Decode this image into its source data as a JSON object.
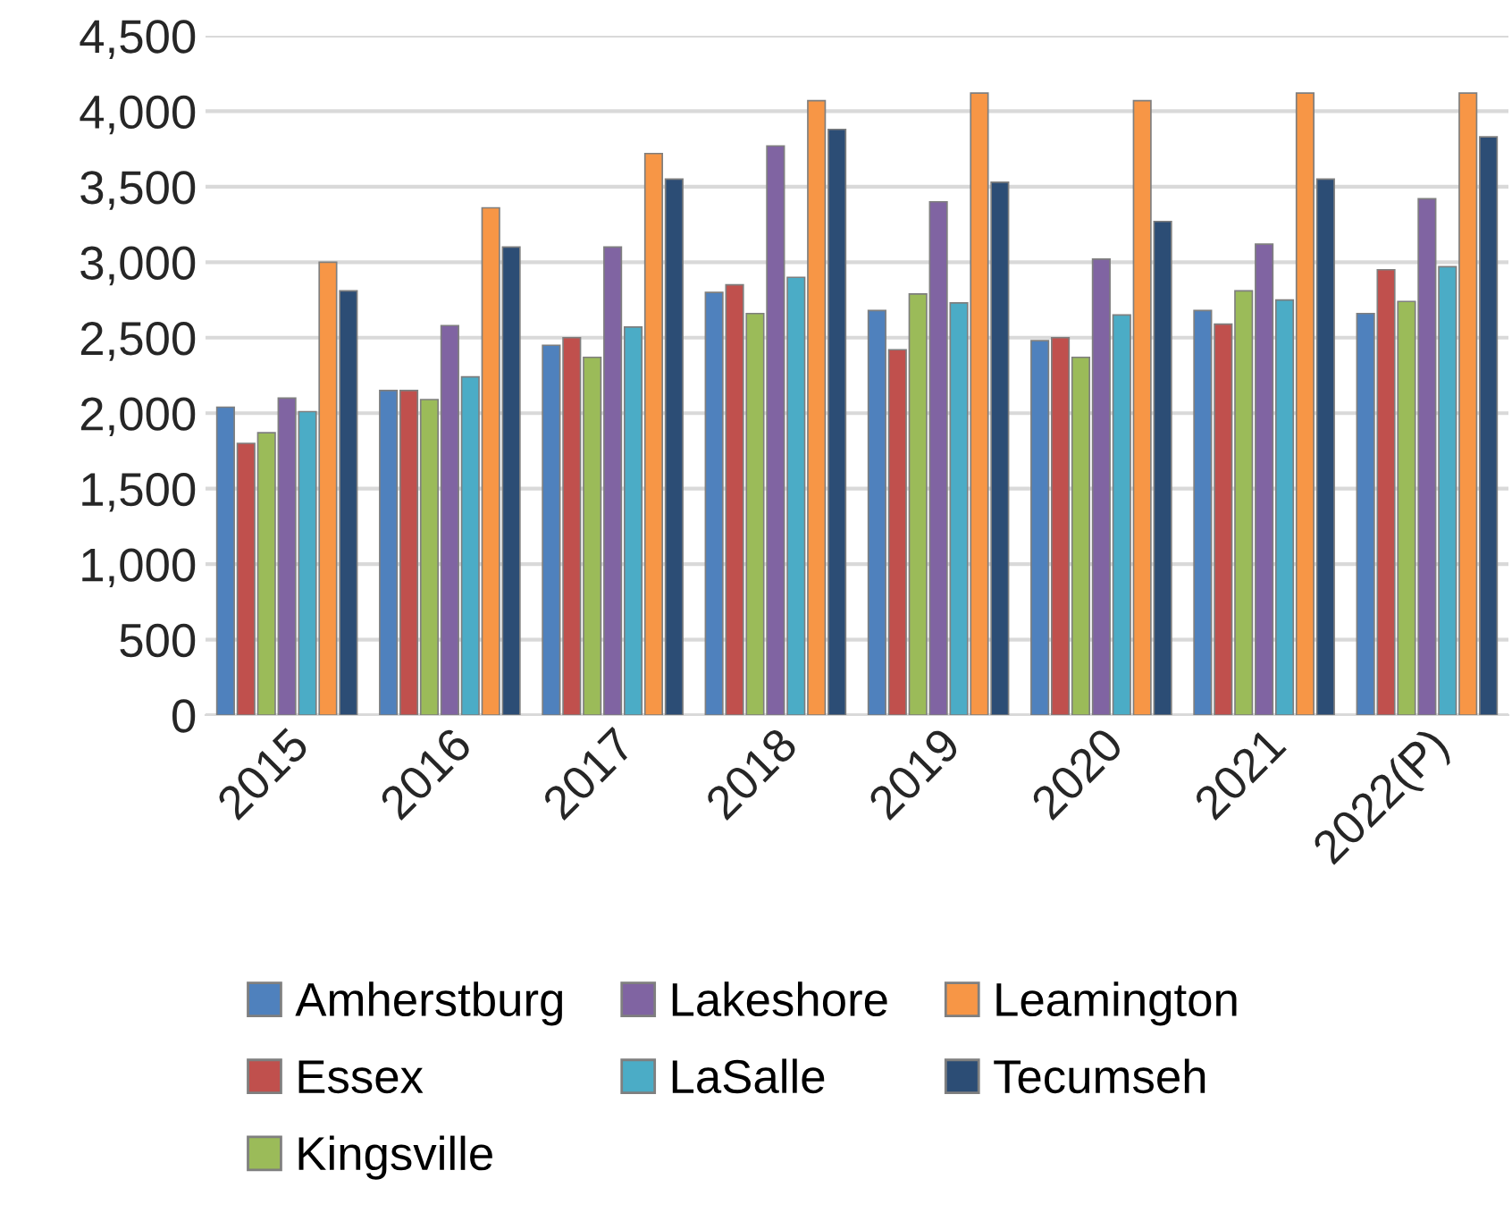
{
  "chart_data": {
    "type": "bar",
    "categories": [
      "2015",
      "2016",
      "2017",
      "2018",
      "2019",
      "2020",
      "2021",
      "2022(P)"
    ],
    "series": [
      {
        "name": "Amherstburg",
        "color": "#4f81bd",
        "values": [
          2040,
          2150,
          2450,
          2800,
          2680,
          2480,
          2680,
          2660
        ]
      },
      {
        "name": "Essex",
        "color": "#c0504d",
        "values": [
          1800,
          2150,
          2500,
          2850,
          2420,
          2500,
          2590,
          2950
        ]
      },
      {
        "name": "Kingsville",
        "color": "#9bbb59",
        "values": [
          1870,
          2090,
          2370,
          2660,
          2790,
          2370,
          2810,
          2740
        ]
      },
      {
        "name": "Lakeshore",
        "color": "#8064a2",
        "values": [
          2100,
          2580,
          3100,
          3770,
          3400,
          3020,
          3120,
          3420
        ]
      },
      {
        "name": "LaSalle",
        "color": "#4bacc6",
        "values": [
          2010,
          2240,
          2570,
          2900,
          2730,
          2650,
          2750,
          2970
        ]
      },
      {
        "name": "Leamington",
        "color": "#f79646",
        "values": [
          3000,
          3360,
          3720,
          4070,
          4120,
          4070,
          4120,
          4120
        ]
      },
      {
        "name": "Tecumseh",
        "color": "#2c4d75",
        "values": [
          2810,
          3100,
          3550,
          3880,
          3530,
          3270,
          3550,
          3830
        ]
      }
    ],
    "ylim": [
      0,
      4500
    ],
    "yticks": [
      {
        "value": 0,
        "label": "0"
      },
      {
        "value": 500,
        "label": "500"
      },
      {
        "value": 1000,
        "label": "1,000"
      },
      {
        "value": 1500,
        "label": "1,500"
      },
      {
        "value": 2000,
        "label": "2,000"
      },
      {
        "value": 2500,
        "label": "2,500"
      },
      {
        "value": 3000,
        "label": "3,000"
      },
      {
        "value": 3500,
        "label": "3,500"
      },
      {
        "value": 4000,
        "label": "4,000"
      },
      {
        "value": 4500,
        "label": "4,500"
      }
    ],
    "grid": "y",
    "legend": "bottom"
  }
}
